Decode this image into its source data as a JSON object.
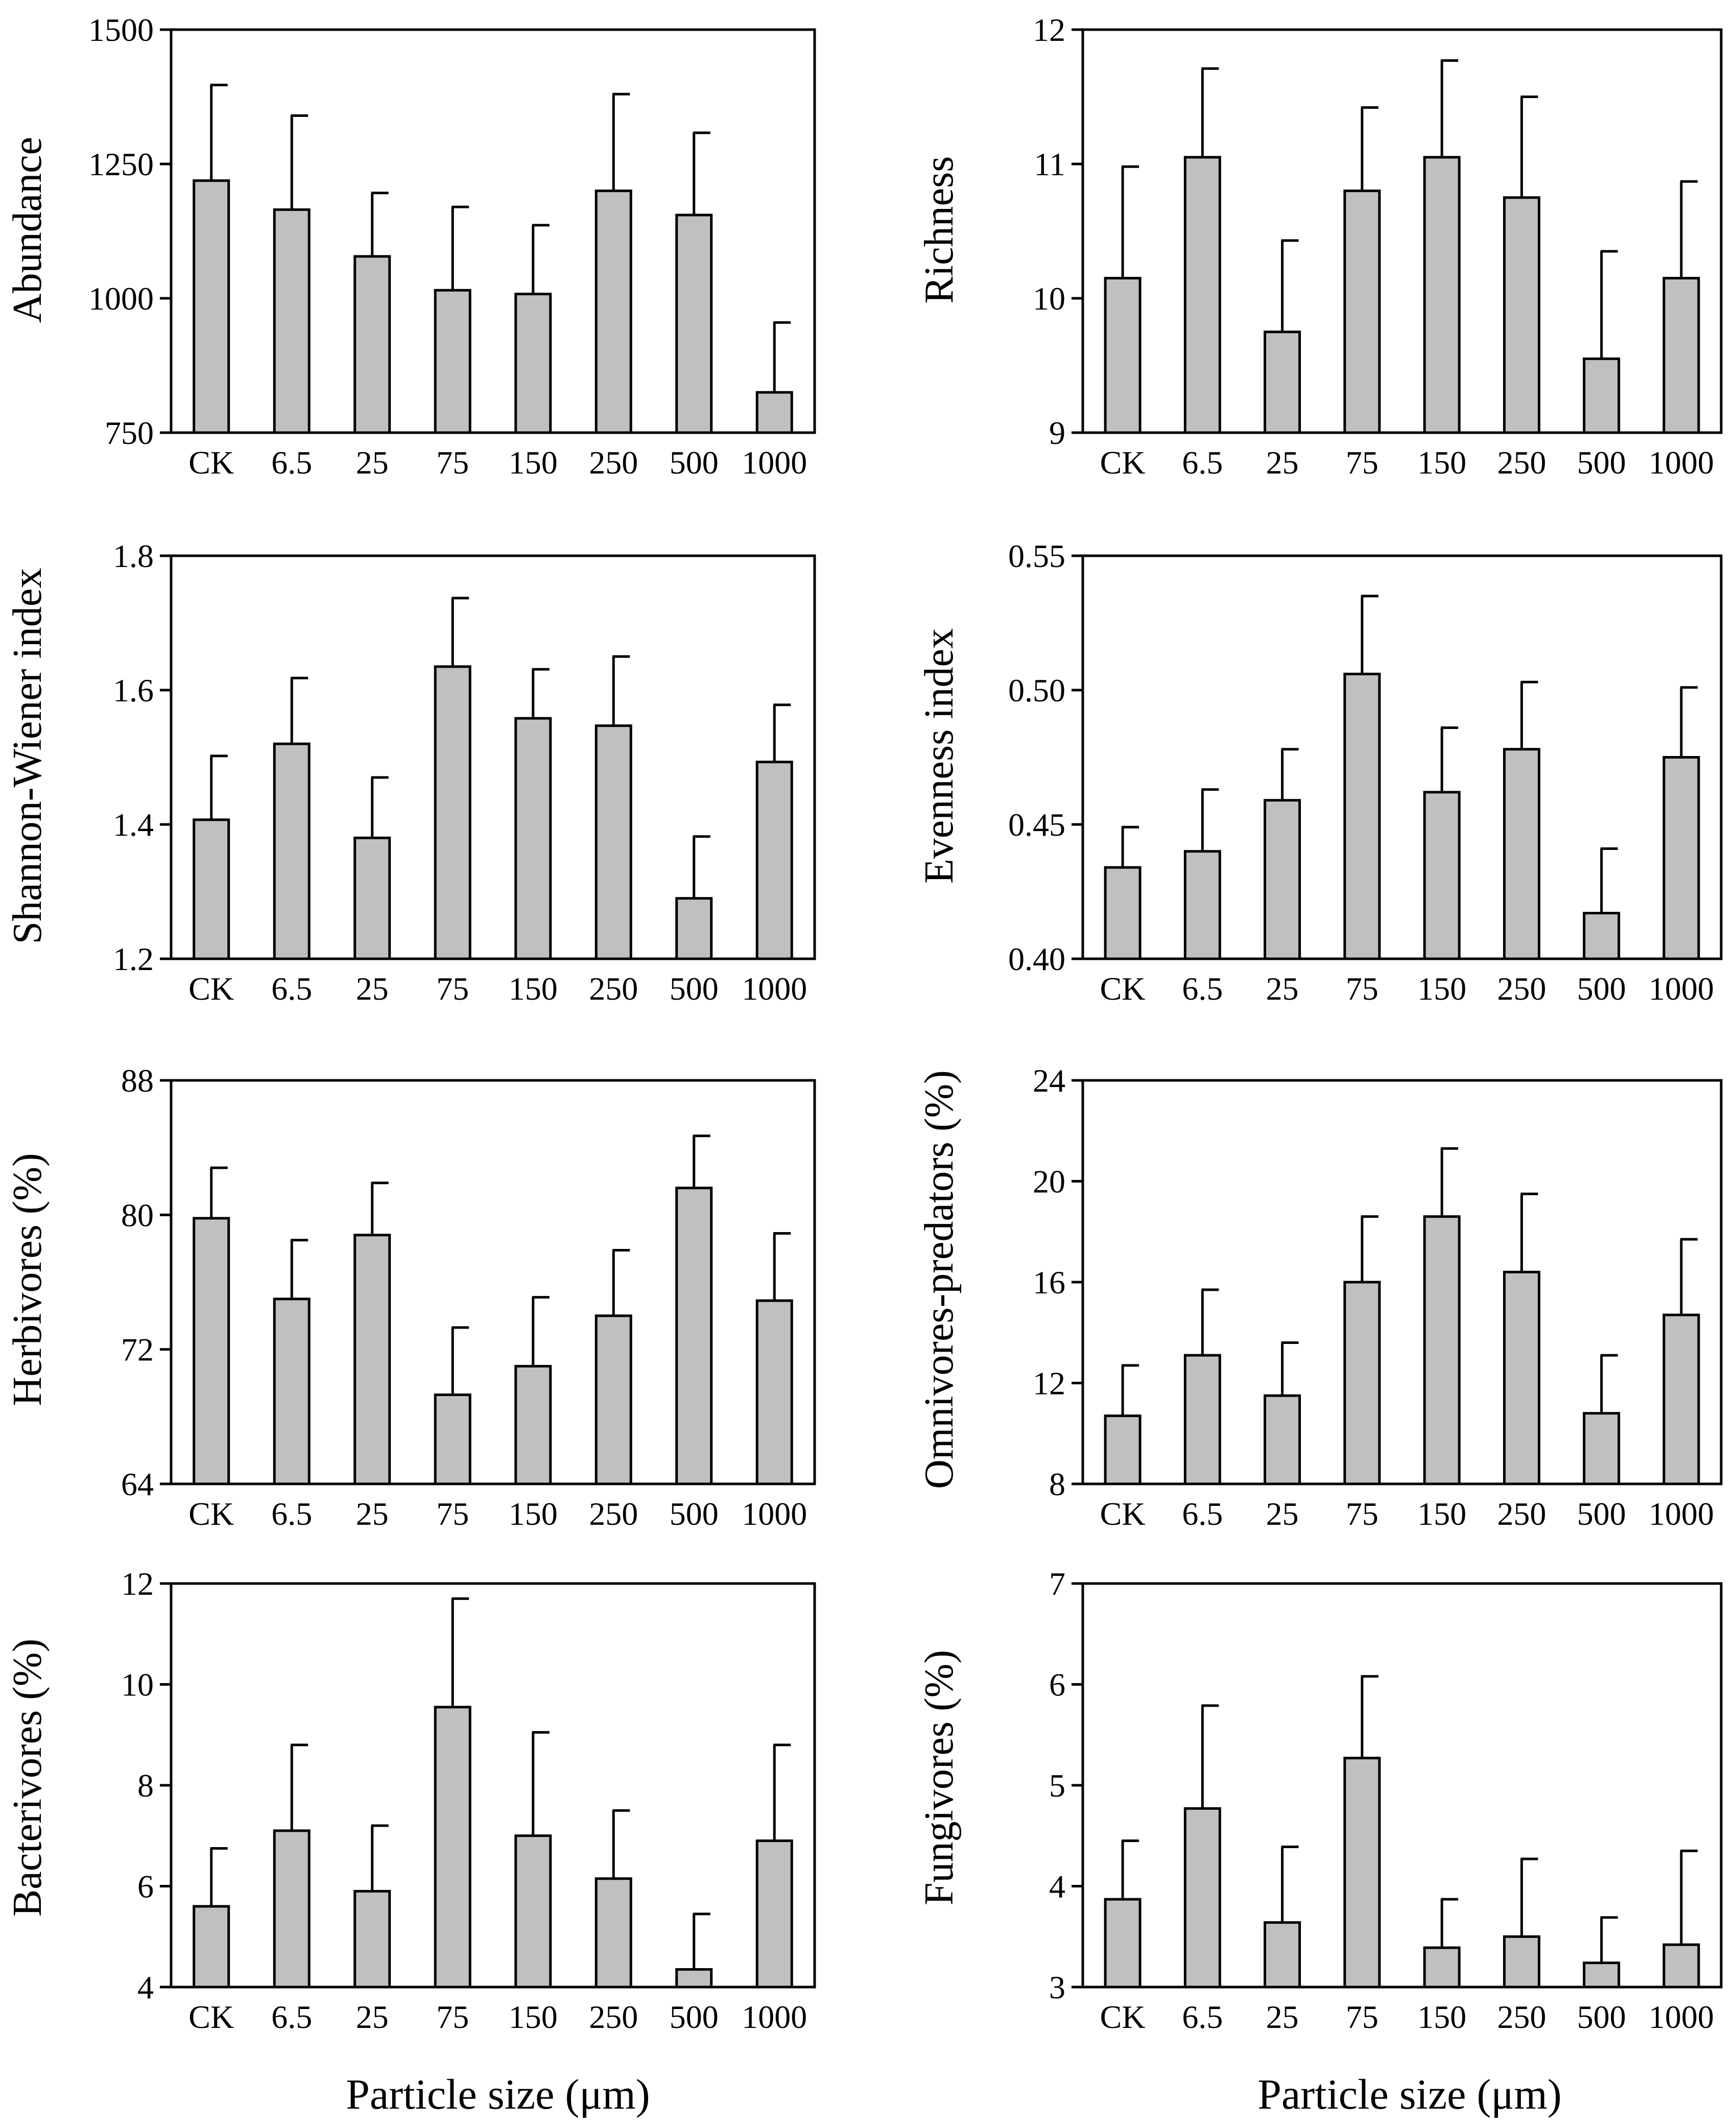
{
  "figure": {
    "x_axis_title": "Particle size (μm)",
    "bar_color": "#c0c0c0",
    "edge_color": "#000000"
  },
  "chart_data": [
    {
      "type": "bar",
      "ylabel": "Abundance",
      "xlabel": "",
      "categories": [
        "CK",
        "6.5",
        "25",
        "75",
        "150",
        "250",
        "500",
        "1000"
      ],
      "values": [
        1219,
        1165,
        1078,
        1015,
        1008,
        1200,
        1155,
        825
      ],
      "error": [
        178,
        175,
        118,
        155,
        128,
        180,
        153,
        130
      ],
      "ylim": [
        750,
        1500
      ],
      "yticks": [
        "750",
        "1000",
        "1250",
        "1500"
      ],
      "ytick_values": [
        750,
        1000,
        1250,
        1500
      ]
    },
    {
      "type": "bar",
      "ylabel": "Richness",
      "xlabel": "",
      "categories": [
        "CK",
        "6.5",
        "25",
        "75",
        "150",
        "250",
        "500",
        "1000"
      ],
      "values": [
        10.15,
        11.05,
        9.75,
        10.8,
        11.05,
        10.75,
        9.55,
        10.15
      ],
      "error": [
        0.83,
        0.66,
        0.68,
        0.62,
        0.72,
        0.75,
        0.8,
        0.72
      ],
      "ylim": [
        9,
        12
      ],
      "yticks": [
        "9",
        "10",
        "11",
        "12"
      ],
      "ytick_values": [
        9,
        10,
        11,
        12
      ]
    },
    {
      "type": "bar",
      "ylabel": "Shannon-Wiener index",
      "xlabel": "",
      "categories": [
        "CK",
        "6.5",
        "25",
        "75",
        "150",
        "250",
        "500",
        "1000"
      ],
      "values": [
        1.407,
        1.52,
        1.38,
        1.635,
        1.558,
        1.547,
        1.29,
        1.493
      ],
      "error": [
        0.095,
        0.098,
        0.09,
        0.102,
        0.073,
        0.103,
        0.092,
        0.085
      ],
      "ylim": [
        1.2,
        1.8
      ],
      "yticks": [
        "1.2",
        "1.4",
        "1.6",
        "1.8"
      ],
      "ytick_values": [
        1.2,
        1.4,
        1.6,
        1.8
      ]
    },
    {
      "type": "bar",
      "ylabel": "Evenness index",
      "xlabel": "",
      "categories": [
        "CK",
        "6.5",
        "25",
        "75",
        "150",
        "250",
        "500",
        "1000"
      ],
      "values": [
        0.434,
        0.44,
        0.459,
        0.506,
        0.462,
        0.478,
        0.417,
        0.475
      ],
      "error": [
        0.015,
        0.023,
        0.019,
        0.029,
        0.024,
        0.025,
        0.024,
        0.026
      ],
      "ylim": [
        0.4,
        0.55
      ],
      "yticks": [
        "0.40",
        "0.45",
        "0.50",
        "0.55"
      ],
      "ytick_values": [
        0.4,
        0.45,
        0.5,
        0.55
      ]
    },
    {
      "type": "bar",
      "ylabel": "Herbivores (%)",
      "xlabel": "",
      "categories": [
        "CK",
        "6.5",
        "25",
        "75",
        "150",
        "250",
        "500",
        "1000"
      ],
      "values": [
        79.8,
        75.0,
        78.8,
        69.3,
        71.0,
        74.0,
        81.6,
        74.9
      ],
      "error": [
        3.0,
        3.5,
        3.1,
        4.0,
        4.1,
        3.9,
        3.1,
        4.0
      ],
      "ylim": [
        64,
        88
      ],
      "yticks": [
        "64",
        "72",
        "80",
        "88"
      ],
      "ytick_values": [
        64,
        72,
        80,
        88
      ]
    },
    {
      "type": "bar",
      "ylabel": "Omnivores-predators (%)",
      "xlabel": "",
      "categories": [
        "CK",
        "6.5",
        "25",
        "75",
        "150",
        "250",
        "500",
        "1000"
      ],
      "values": [
        10.7,
        13.1,
        11.5,
        16.0,
        18.6,
        16.4,
        10.8,
        14.7
      ],
      "error": [
        2.0,
        2.6,
        2.1,
        2.6,
        2.7,
        3.1,
        2.3,
        3.0
      ],
      "ylim": [
        8,
        24
      ],
      "yticks": [
        "8",
        "12",
        "16",
        "20",
        "24"
      ],
      "ytick_values": [
        8,
        12,
        16,
        20,
        24
      ]
    },
    {
      "type": "bar",
      "ylabel": "Bacterivores (%)",
      "xlabel": "",
      "categories": [
        "CK",
        "6.5",
        "25",
        "75",
        "150",
        "250",
        "500",
        "1000"
      ],
      "values": [
        5.6,
        7.1,
        5.9,
        9.55,
        7.0,
        6.15,
        4.35,
        6.9
      ],
      "error": [
        1.15,
        1.7,
        1.3,
        2.15,
        2.05,
        1.35,
        1.1,
        1.9
      ],
      "ylim": [
        4,
        12
      ],
      "yticks": [
        "4",
        "6",
        "8",
        "10",
        "12"
      ],
      "ytick_values": [
        4,
        6,
        8,
        10,
        12
      ]
    },
    {
      "type": "bar",
      "ylabel": "Fungivores (%)",
      "xlabel": "",
      "categories": [
        "CK",
        "6.5",
        "25",
        "75",
        "150",
        "250",
        "500",
        "1000"
      ],
      "values": [
        3.87,
        4.77,
        3.64,
        5.27,
        3.39,
        3.5,
        3.24,
        3.42
      ],
      "error": [
        0.58,
        1.02,
        0.75,
        0.81,
        0.48,
        0.77,
        0.45,
        0.93
      ],
      "ylim": [
        3,
        7
      ],
      "yticks": [
        "3",
        "4",
        "5",
        "6",
        "7"
      ],
      "ytick_values": [
        3,
        4,
        5,
        6,
        7
      ]
    }
  ]
}
